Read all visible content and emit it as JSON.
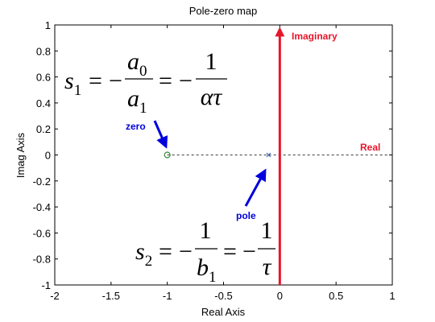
{
  "chart_data": {
    "type": "scatter",
    "title": "Pole-zero map",
    "xlabel": "Real Axis",
    "ylabel": "Imag Axis",
    "xlim": [
      -2,
      1
    ],
    "ylim": [
      -1,
      1
    ],
    "xticks": [
      "-2",
      "-1.5",
      "-1",
      "-0.5",
      "0",
      "0.5",
      "1"
    ],
    "yticks": [
      "1",
      "0.8",
      "0.6",
      "0.4",
      "0.2",
      "0",
      "-0.2",
      "-0.4",
      "-0.6",
      "-0.8",
      "-1"
    ],
    "grid": false,
    "zeros": [
      {
        "x": -1.0,
        "y": 0
      }
    ],
    "poles": [
      {
        "x": -0.1,
        "y": 0
      }
    ],
    "colors": {
      "marker": "#3a8a3a",
      "blue": "#0000dd",
      "red": "#e8162a"
    },
    "annotations": {
      "zero_label": "zero",
      "pole_label": "pole",
      "imag_label": "Imaginary",
      "real_label": "Real"
    },
    "equations": {
      "s1": {
        "lhs": "s",
        "lhs_sub": "1",
        "mid_num": "a",
        "mid_num_sub": "0",
        "mid_den": "a",
        "mid_den_sub": "1",
        "rhs_num": "1",
        "rhs_den": "ατ"
      },
      "s2": {
        "lhs": "s",
        "lhs_sub": "2",
        "mid_num": "1",
        "mid_den": "b",
        "mid_den_sub": "1",
        "rhs_num": "1",
        "rhs_den": "τ"
      }
    }
  }
}
